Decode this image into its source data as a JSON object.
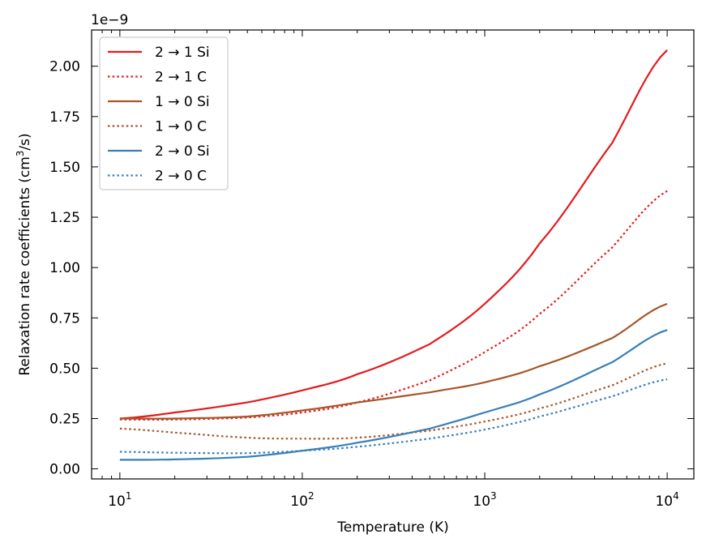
{
  "chart_data": {
    "type": "line",
    "xscale": "log",
    "xlabel": "Temperature (K)",
    "ylabel_prefix": "Relaxation rate coefficients (cm",
    "ylabel_sup": "3",
    "ylabel_suffix": "/s)",
    "y_offset_text": "1e−9",
    "y_multiplier": 1e-09,
    "xlim": [
      7,
      14000
    ],
    "ylim": [
      -0.05,
      2.18
    ],
    "x_ticks": [
      {
        "value": 10,
        "base": "10",
        "exp": "1"
      },
      {
        "value": 100,
        "base": "10",
        "exp": "2"
      },
      {
        "value": 1000,
        "base": "10",
        "exp": "3"
      },
      {
        "value": 10000,
        "base": "10",
        "exp": "4"
      }
    ],
    "y_ticks": [
      {
        "value": 0.0,
        "label": "0.00"
      },
      {
        "value": 0.25,
        "label": "0.25"
      },
      {
        "value": 0.5,
        "label": "0.50"
      },
      {
        "value": 0.75,
        "label": "0.75"
      },
      {
        "value": 1.0,
        "label": "1.00"
      },
      {
        "value": 1.25,
        "label": "1.25"
      },
      {
        "value": 1.5,
        "label": "1.50"
      },
      {
        "value": 1.75,
        "label": "1.75"
      },
      {
        "value": 2.0,
        "label": "2.00"
      }
    ],
    "legend_position": "top-left",
    "series": [
      {
        "name": "2 → 1 Si",
        "color": "#e41a1c",
        "style": "solid",
        "x": [
          10,
          20,
          50,
          100,
          200,
          500,
          1000,
          2000,
          5000,
          10000
        ],
        "y": [
          0.25,
          0.28,
          0.33,
          0.39,
          0.47,
          0.62,
          0.82,
          1.12,
          1.62,
          2.08
        ]
      },
      {
        "name": "2 → 1 C",
        "color": "#e41a1c",
        "style": "dotted",
        "x": [
          10,
          20,
          50,
          100,
          200,
          500,
          1000,
          2000,
          5000,
          10000
        ],
        "y": [
          0.245,
          0.245,
          0.255,
          0.28,
          0.33,
          0.44,
          0.58,
          0.77,
          1.1,
          1.38
        ]
      },
      {
        "name": "1 → 0 Si",
        "color": "#a65628",
        "style": "solid",
        "x": [
          10,
          20,
          50,
          100,
          200,
          500,
          1000,
          2000,
          5000,
          10000
        ],
        "y": [
          0.25,
          0.25,
          0.26,
          0.29,
          0.33,
          0.38,
          0.43,
          0.51,
          0.65,
          0.82
        ]
      },
      {
        "name": "1 → 0 C",
        "color": "#a65628",
        "style": "dotted",
        "x": [
          10,
          20,
          50,
          100,
          200,
          500,
          1000,
          2000,
          5000,
          10000
        ],
        "y": [
          0.2,
          0.18,
          0.155,
          0.15,
          0.155,
          0.19,
          0.235,
          0.3,
          0.415,
          0.525
        ]
      },
      {
        "name": "2 → 0 Si",
        "color": "#377eb8",
        "style": "solid",
        "x": [
          10,
          20,
          50,
          100,
          200,
          500,
          1000,
          2000,
          5000,
          10000
        ],
        "y": [
          0.045,
          0.047,
          0.06,
          0.09,
          0.13,
          0.2,
          0.28,
          0.37,
          0.53,
          0.69
        ]
      },
      {
        "name": "2 → 0 C",
        "color": "#377eb8",
        "style": "dotted",
        "x": [
          10,
          20,
          50,
          100,
          200,
          500,
          1000,
          2000,
          5000,
          10000
        ],
        "y": [
          0.085,
          0.08,
          0.078,
          0.09,
          0.11,
          0.15,
          0.195,
          0.26,
          0.36,
          0.445
        ]
      }
    ]
  }
}
